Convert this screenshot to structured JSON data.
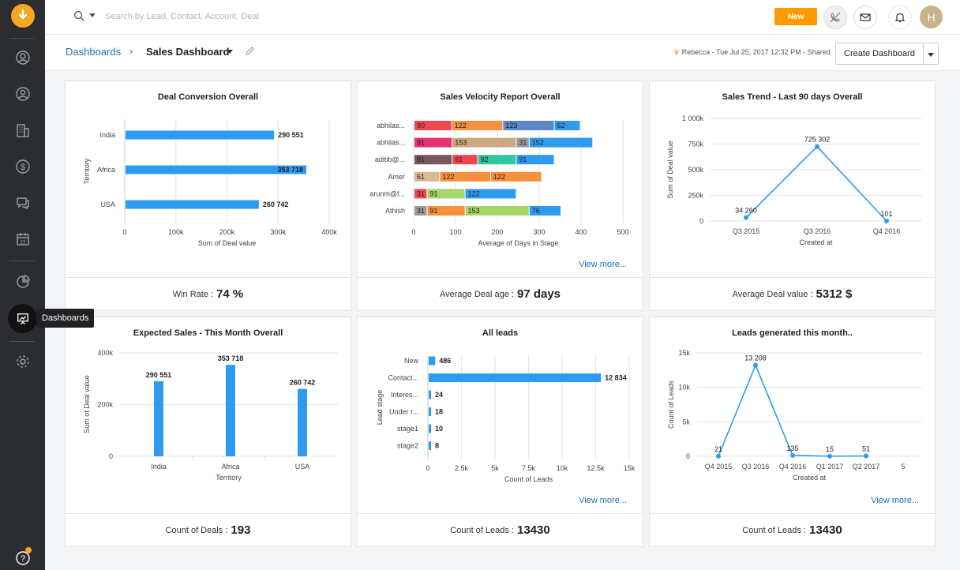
{
  "app": {
    "tooltip": "Dashboards",
    "search_placeholder": "Search by Lead, Contact, Account, Deal",
    "new_button": "New",
    "avatar_initial": "H"
  },
  "breadcrumb": {
    "parent": "Dashboards",
    "separator": "›",
    "current": "Sales Dashboard",
    "shared_info": "Rebecca - Tue Jul 25, 2017 12:32 PM - Shared",
    "create_button": "Create Dashboard"
  },
  "colors": {
    "accent": "#ff9a00",
    "bar": "#2e9bf0",
    "link": "#1f6fb5"
  },
  "cards": [
    {
      "title": "Deal Conversion Overall",
      "foot_label": "Win Rate :",
      "foot_value": "74 %"
    },
    {
      "title": "Sales Velocity Report Overall",
      "foot_label": "Average Deal age :",
      "foot_value": "97 days",
      "view_more": "View more..."
    },
    {
      "title": "Sales Trend - Last 90 days Overall",
      "foot_label": "Average Deal value :",
      "foot_value": "5312 $"
    },
    {
      "title": "Expected Sales - This Month Overall",
      "foot_label": "Count of Deals :",
      "foot_value": "193"
    },
    {
      "title": "All leads",
      "foot_label": "Count of Leads :",
      "foot_value": "13430",
      "view_more": "View more..."
    },
    {
      "title": "Leads generated this month..",
      "foot_label": "Count of Leads :",
      "foot_value": "13430",
      "view_more": "View more..."
    }
  ],
  "chart_data": [
    {
      "type": "bar",
      "orientation": "horizontal",
      "title": "Deal Conversion Overall",
      "categories": [
        "India",
        "Africa",
        "USA"
      ],
      "values": [
        290551,
        353718,
        260742
      ],
      "labels": [
        "290 551",
        "353 718",
        "260 742"
      ],
      "xlabel": "Sum of Deal value",
      "ylabel": "Territory",
      "xlim": [
        0,
        400000
      ],
      "xticks": [
        0,
        100000,
        200000,
        300000,
        400000
      ],
      "xtick_labels": [
        "0",
        "100k",
        "200k",
        "300k",
        "400k"
      ]
    },
    {
      "type": "bar",
      "orientation": "horizontal",
      "stacked": true,
      "title": "Sales Velocity Report Overall",
      "categories": [
        "abhilas...",
        "abhilas...",
        "aditib@...",
        "Amer",
        "arunm@f...",
        "Athish"
      ],
      "segments": [
        [
          {
            "v": 90,
            "c": "#f0464f"
          },
          {
            "v": 122,
            "c": "#f7913d"
          },
          {
            "v": 123,
            "c": "#5e87c5"
          },
          {
            "v": 62,
            "c": "#2e9bf0"
          }
        ],
        [
          {
            "v": 91,
            "c": "#e8336e"
          },
          {
            "v": 0,
            "c": "#f0464f"
          },
          {
            "v": 153,
            "c": "#caa982"
          },
          {
            "v": 31,
            "c": "#9b9b9b"
          },
          {
            "v": 152,
            "c": "#2e9bf0"
          }
        ],
        [
          {
            "v": 0,
            "c": "#8a5a5a"
          },
          {
            "v": 91,
            "c": "#7a5563"
          },
          {
            "v": 61,
            "c": "#f0464f"
          },
          {
            "v": 92,
            "c": "#2ec79e"
          },
          {
            "v": 91,
            "c": "#2e9bf0"
          }
        ],
        [
          {
            "v": 61,
            "c": "#d9b894"
          },
          {
            "v": 122,
            "c": "#f7913d"
          },
          {
            "v": 122,
            "c": "#f7913d"
          }
        ],
        [
          {
            "v": 31,
            "c": "#f0464f"
          },
          {
            "v": 91,
            "c": "#a6d66a"
          },
          {
            "v": 122,
            "c": "#2e9bf0"
          }
        ],
        [
          {
            "v": 31,
            "c": "#9b9b9b"
          },
          {
            "v": 91,
            "c": "#f7913d"
          },
          {
            "v": 153,
            "c": "#a6d66a"
          },
          {
            "v": 76,
            "c": "#2e9bf0"
          }
        ]
      ],
      "xlabel": "Average of Days in Stage",
      "xlim": [
        0,
        500
      ],
      "xticks": [
        0,
        100,
        200,
        300,
        400,
        500
      ],
      "xtick_labels": [
        "0",
        "100",
        "200",
        "300",
        "400",
        "500"
      ]
    },
    {
      "type": "line",
      "title": "Sales Trend - Last 90 days Overall",
      "categories": [
        "Q3 2015",
        "Q3 2016",
        "Q4 2016"
      ],
      "values": [
        34260,
        725302,
        101
      ],
      "labels": [
        "34 260",
        "725 302",
        "101"
      ],
      "xlabel": "Created at",
      "ylabel": "Sum of Deal value",
      "ylim": [
        0,
        1000000
      ],
      "yticks": [
        0,
        250000,
        500000,
        750000,
        1000000
      ],
      "ytick_labels": [
        "0",
        "250k",
        "500k",
        "750k",
        "1 000k"
      ]
    },
    {
      "type": "bar",
      "orientation": "vertical",
      "title": "Expected Sales - This Month Overall",
      "categories": [
        "India",
        "Africa",
        "USA"
      ],
      "values": [
        290551,
        353718,
        260742
      ],
      "labels": [
        "290 551",
        "353 718",
        "260 742"
      ],
      "xlabel": "Territory",
      "ylabel": "Sum of Deal value",
      "ylim": [
        0,
        400000
      ],
      "yticks": [
        0,
        200000,
        400000
      ],
      "ytick_labels": [
        "0",
        "200k",
        "400k"
      ]
    },
    {
      "type": "bar",
      "orientation": "horizontal",
      "title": "All leads",
      "categories": [
        "New",
        "Contact...",
        "Interes...",
        "Under r...",
        "stage1",
        "stage2"
      ],
      "values": [
        486,
        12834,
        24,
        18,
        10,
        8
      ],
      "labels": [
        "486",
        "12 834",
        "24",
        "18",
        "10",
        "8"
      ],
      "xlabel": "Count of Leads",
      "ylabel": "Lead stage",
      "xlim": [
        0,
        15000
      ],
      "xticks": [
        0,
        2500,
        5000,
        7500,
        10000,
        12500,
        15000
      ],
      "xtick_labels": [
        "0",
        "2.5k",
        "5k",
        "7.5k",
        "10k",
        "12.5k",
        "15k"
      ]
    },
    {
      "type": "line",
      "title": "Leads generated this month..",
      "categories": [
        "Q4 2015",
        "Q3 2016",
        "Q4 2016",
        "Q1 2017",
        "Q2 2017",
        "5"
      ],
      "values": [
        21,
        13208,
        135,
        15,
        51,
        null
      ],
      "labels": [
        "21",
        "13 208",
        "135",
        "15",
        "51",
        ""
      ],
      "xlabel": "Created at",
      "ylabel": "Count of Leads",
      "ylim": [
        0,
        15000
      ],
      "yticks": [
        0,
        5000,
        10000,
        15000
      ],
      "ytick_labels": [
        "0",
        "5k",
        "10k",
        "15k"
      ]
    }
  ]
}
